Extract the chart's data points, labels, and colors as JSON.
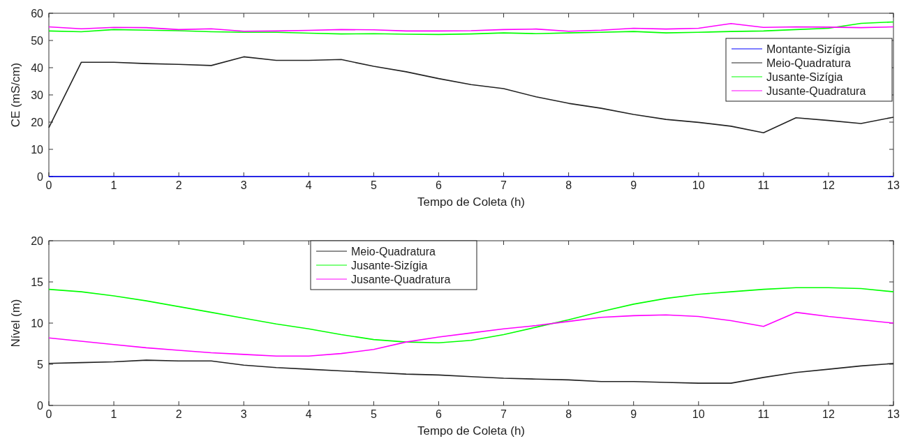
{
  "chart_data": [
    {
      "type": "line",
      "xlabel": "Tempo de Coleta (h)",
      "ylabel": "CE (mS/cm)",
      "x": [
        0,
        0.5,
        1,
        1.5,
        2,
        2.5,
        3,
        3.5,
        4,
        4.5,
        5,
        5.5,
        6,
        6.5,
        7,
        7.5,
        8,
        8.5,
        9,
        9.5,
        10,
        10.5,
        11,
        11.5,
        12,
        12.5,
        13
      ],
      "series": [
        {
          "name": "Montante-Sizígia",
          "color": "#0000ff",
          "values": [
            0,
            0,
            0,
            0,
            0,
            0,
            0,
            0,
            0,
            0,
            0,
            0,
            0,
            0,
            0,
            0,
            0,
            0,
            0,
            0,
            0,
            0,
            0,
            0,
            0,
            0,
            0
          ]
        },
        {
          "name": "Meio-Quadratura",
          "color": "#222222",
          "values": [
            18,
            42,
            42,
            41.5,
            41.2,
            40.8,
            44,
            42.7,
            42.7,
            43,
            40.5,
            38.5,
            36,
            33.8,
            32.3,
            29.3,
            26.9,
            25.1,
            22.8,
            21,
            19.9,
            18.5,
            16.1,
            21.6,
            20.6,
            19.5,
            21.8
          ]
        },
        {
          "name": "Jusante-Sizígia",
          "color": "#00ff00",
          "values": [
            53.5,
            53.2,
            54,
            53.8,
            53.6,
            53.2,
            53,
            53,
            52.7,
            52.4,
            52.5,
            52.3,
            52.2,
            52.4,
            52.8,
            52.5,
            52.8,
            53,
            53.3,
            52.8,
            53,
            53.3,
            53.5,
            54,
            54.5,
            56.3,
            56.8
          ]
        },
        {
          "name": "Jusante-Quadratura",
          "color": "#ff00ff",
          "values": [
            55,
            54.3,
            54.8,
            54.7,
            54,
            54.3,
            53.4,
            53.5,
            53.7,
            54,
            53.9,
            53.5,
            53.5,
            53.6,
            54,
            54.2,
            53.4,
            53.8,
            54.5,
            54.2,
            54.5,
            56.2,
            54.8,
            55,
            54.9,
            54.7,
            55
          ]
        }
      ],
      "xlim": [
        0,
        13
      ],
      "xticks": [
        0,
        1,
        2,
        3,
        4,
        5,
        6,
        7,
        8,
        9,
        10,
        11,
        12,
        13
      ],
      "ylim": [
        0,
        60
      ],
      "yticks": [
        0,
        10,
        20,
        30,
        40,
        50,
        60
      ],
      "legend": "top right"
    },
    {
      "type": "line",
      "xlabel": "Tempo de Coleta (h)",
      "ylabel": "Nível (m)",
      "x": [
        0,
        0.5,
        1,
        1.5,
        2,
        2.5,
        3,
        3.5,
        4,
        4.5,
        5,
        5.5,
        6,
        6.5,
        7,
        7.5,
        8,
        8.5,
        9,
        9.5,
        10,
        10.5,
        11,
        11.5,
        12,
        12.5,
        13
      ],
      "series": [
        {
          "name": "Meio-Quadratura",
          "color": "#222222",
          "values": [
            5.1,
            5.2,
            5.3,
            5.5,
            5.4,
            5.4,
            4.9,
            4.6,
            4.4,
            4.2,
            4.0,
            3.8,
            3.7,
            3.5,
            3.3,
            3.2,
            3.1,
            2.9,
            2.9,
            2.8,
            2.7,
            2.7,
            3.4,
            4.0,
            4.4,
            4.8,
            5.1
          ]
        },
        {
          "name": "Jusante-Sizígia",
          "color": "#00ff00",
          "values": [
            14.1,
            13.8,
            13.3,
            12.7,
            12.0,
            11.3,
            10.6,
            9.9,
            9.3,
            8.6,
            8.0,
            7.7,
            7.6,
            7.9,
            8.6,
            9.5,
            10.4,
            11.4,
            12.3,
            13.0,
            13.5,
            13.8,
            14.1,
            14.3,
            14.3,
            14.2,
            13.8
          ]
        },
        {
          "name": "Jusante-Quadratura",
          "color": "#ff00ff",
          "values": [
            8.2,
            7.8,
            7.4,
            7.0,
            6.7,
            6.4,
            6.2,
            6.0,
            6.0,
            6.3,
            6.8,
            7.7,
            8.3,
            8.8,
            9.3,
            9.7,
            10.2,
            10.7,
            10.9,
            11.0,
            10.8,
            10.3,
            9.6,
            11.3,
            10.8,
            10.4,
            10.0
          ]
        }
      ],
      "xlim": [
        0,
        13
      ],
      "xticks": [
        0,
        1,
        2,
        3,
        4,
        5,
        6,
        7,
        8,
        9,
        10,
        11,
        12,
        13
      ],
      "ylim": [
        0,
        20
      ],
      "yticks": [
        0,
        5,
        10,
        15,
        20
      ],
      "legend": "top"
    }
  ]
}
